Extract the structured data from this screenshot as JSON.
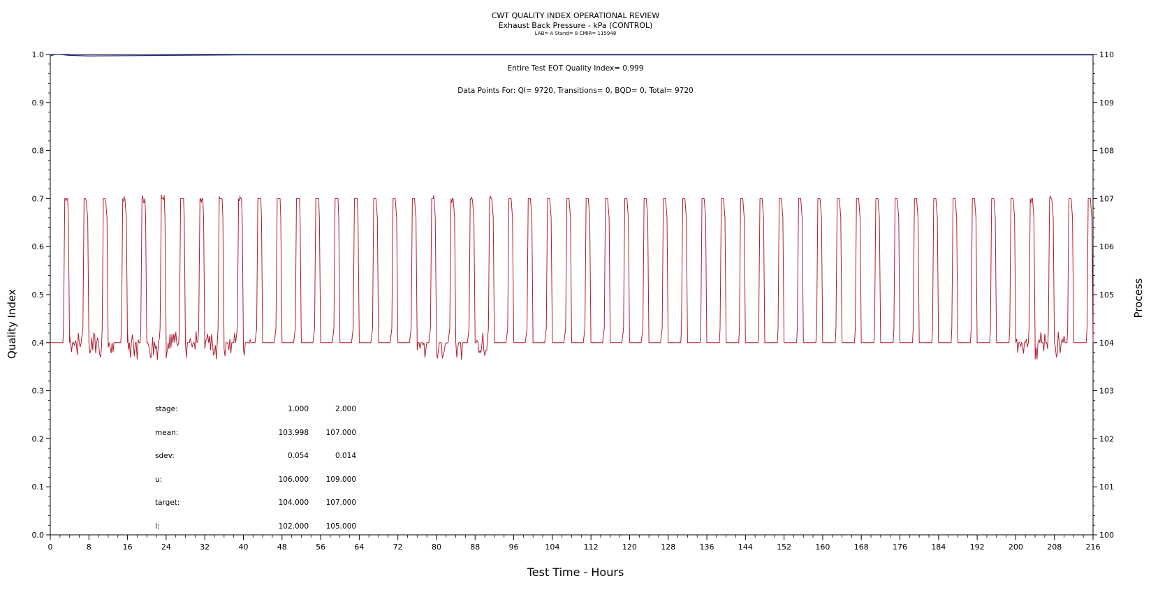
{
  "chart_data": {
    "type": "line",
    "title": "CWT QUALITY INDEX OPERATIONAL REVIEW",
    "subtitle": "Exhaust Back Pressure - kPa (CONTROL)",
    "subsubtitle": "LAB= A Stand= 8 CMIR= 115948",
    "xlabel": "Test Time - Hours",
    "ylabel_left": "Quality Index",
    "ylabel_right": "Process",
    "xlim": [
      0,
      216
    ],
    "ylim_left": [
      0.0,
      1.0
    ],
    "ylim_right": [
      100,
      110
    ],
    "x_ticks": [
      "0",
      "8",
      "16",
      "24",
      "32",
      "40",
      "48",
      "56",
      "64",
      "72",
      "80",
      "88",
      "96",
      "104",
      "112",
      "120",
      "128",
      "136",
      "144",
      "152",
      "160",
      "168",
      "176",
      "184",
      "192",
      "200",
      "208",
      "216"
    ],
    "y_left_ticks": [
      "0.0",
      "0.1",
      "0.2",
      "0.3",
      "0.4",
      "0.5",
      "0.6",
      "0.7",
      "0.8",
      "0.9",
      "1.0"
    ],
    "y_right_ticks": [
      "100",
      "101",
      "102",
      "103",
      "104",
      "105",
      "106",
      "107",
      "108",
      "109",
      "110"
    ],
    "annotations": {
      "eot": "Entire Test EOT Quality Index=   0.999",
      "points": "Data Points For: QI=  9720, Transitions=     0, BQD=     0, Total=  9720"
    },
    "stats_table": {
      "rows": [
        {
          "label": "stage:",
          "v1": "1.000",
          "v2": "2.000"
        },
        {
          "label": "mean:",
          "v1": "103.998",
          "v2": "107.000"
        },
        {
          "label": "sdev:",
          "v1": "0.054",
          "v2": "0.014"
        },
        {
          "label": "u:",
          "v1": "106.000",
          "v2": "109.000"
        },
        {
          "label": "target:",
          "v1": "104.000",
          "v2": "107.000"
        },
        {
          "label": "l:",
          "v1": "102.000",
          "v2": "105.000"
        }
      ]
    },
    "series": [
      {
        "name": "Quality Index",
        "color": "#1f2a8c",
        "x": [
          0,
          1,
          2,
          4,
          8,
          40,
          216
        ],
        "y": [
          0.997,
          1.0,
          1.0,
          0.998,
          0.997,
          0.999,
          0.999
        ]
      },
      {
        "name": "Process",
        "color": "#b01c2e",
        "pattern": "square_wave",
        "cycle_hours": 4,
        "low_value": 104.0,
        "high_value": 107.0,
        "start": 0.0,
        "end": 216.0,
        "noise_regions": [
          [
            3,
            42
          ],
          [
            76,
            92
          ],
          [
            200,
            210
          ]
        ]
      }
    ]
  }
}
